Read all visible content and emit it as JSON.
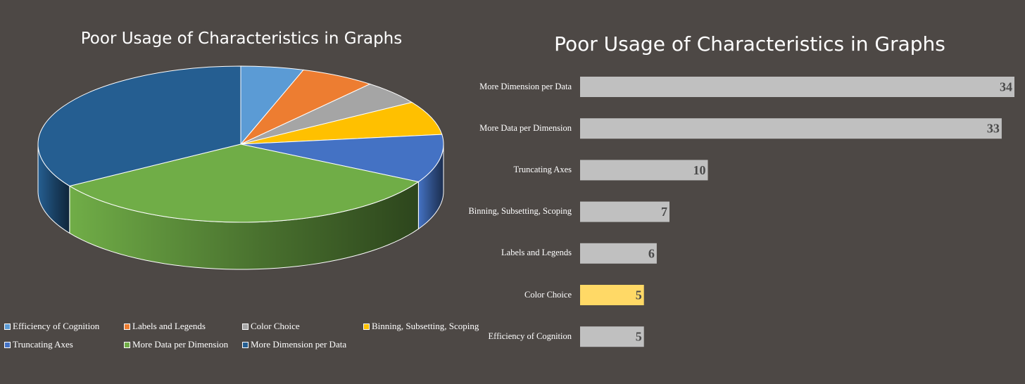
{
  "chart_data": [
    {
      "type": "pie",
      "title": "Poor Usage of Characteristics in Graphs",
      "legend_position": "bottom",
      "slices": [
        {
          "label": "Efficiency of Cognition",
          "value": 5,
          "color": "#5b9bd5"
        },
        {
          "label": "Labels and Legends",
          "value": 6,
          "color": "#ed7d31"
        },
        {
          "label": "Color Choice",
          "value": 5,
          "color": "#a5a5a5"
        },
        {
          "label": "Binning, Subsetting, Scoping",
          "value": 7,
          "color": "#ffc000"
        },
        {
          "label": "Truncating Axes",
          "value": 10,
          "color": "#4472c4"
        },
        {
          "label": "More Data per Dimension",
          "value": 33,
          "color": "#70ad47"
        },
        {
          "label": "More Dimension per Data",
          "value": 34,
          "color": "#255e91"
        }
      ]
    },
    {
      "type": "bar",
      "orientation": "horizontal",
      "title": "Poor Usage of Characteristics in Graphs",
      "categories": [
        "More Dimension per Data",
        "More Data per Dimension",
        "Truncating Axes",
        "Binning, Subsetting, Scoping",
        "Labels and Legends",
        "Color Choice",
        "Efficiency of Cognition"
      ],
      "values": [
        34,
        33,
        10,
        7,
        6,
        5,
        5
      ],
      "xlim": [
        0,
        34
      ],
      "bar_color": "#c0c0c0",
      "highlight": {
        "category": "Color Choice",
        "color": "#ffd966"
      },
      "data_labels": true,
      "grid": false
    }
  ]
}
